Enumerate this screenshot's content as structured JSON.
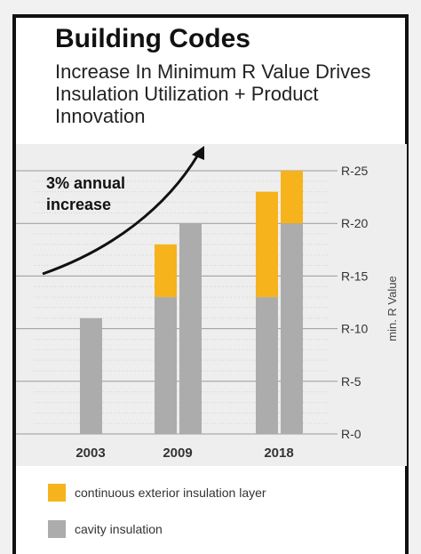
{
  "title": "Building Codes",
  "subtitle": "Increase In Minimum R Value Drives Insulation Utilization + Product Innovation",
  "colors": {
    "continuous": "#f6b31b",
    "cavity": "#acacac",
    "background": "#eeeeee",
    "arrow": "#111111"
  },
  "chart_data": {
    "type": "bar",
    "stacked": true,
    "categories": [
      "2003",
      "2009",
      "2018"
    ],
    "bars": [
      {
        "category": "2003",
        "cavity": 11,
        "continuous": 0
      },
      {
        "category": "2009",
        "cavity": 13,
        "continuous": 5
      },
      {
        "category": "2009",
        "cavity": 20,
        "continuous": 0
      },
      {
        "category": "2018",
        "cavity": 13,
        "continuous": 10
      },
      {
        "category": "2018",
        "cavity": 20,
        "continuous": 5
      }
    ],
    "series": [
      {
        "name": "continuous exterior insulation layer"
      },
      {
        "name": "cavity insulation"
      }
    ],
    "ylabel": "min. R Value",
    "ylim": [
      0,
      25
    ],
    "yticks": [
      0,
      5,
      10,
      15,
      20,
      25
    ],
    "ytick_labels": [
      "R-0",
      "R-5",
      "R-10",
      "R-15",
      "R-20",
      "R-25"
    ],
    "y_axis_side": "right",
    "grid": true,
    "annotation": "3% annual increase",
    "annotation_lines": [
      "3% annual",
      "increase"
    ],
    "legend_position": "bottom"
  }
}
